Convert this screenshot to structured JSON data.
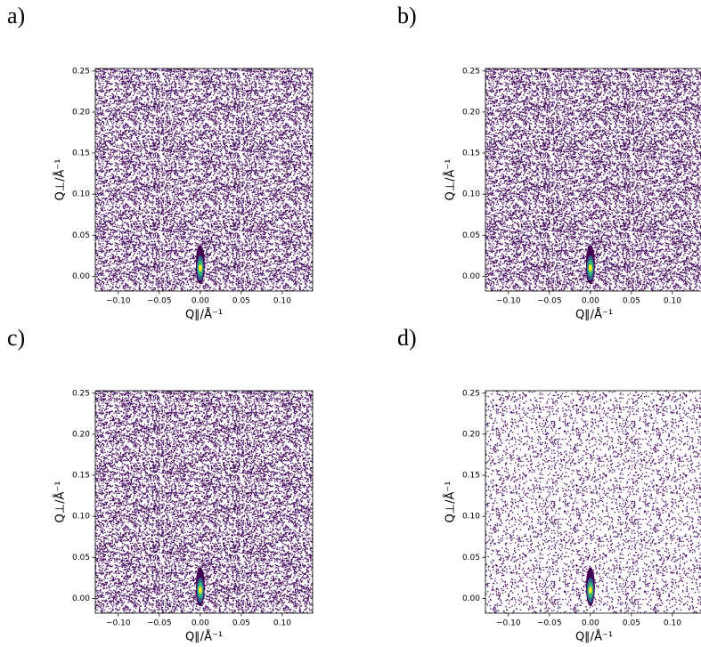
{
  "chart_data": [
    {
      "type": "heatmap",
      "panel": "a)",
      "xlabel": "Q∥/Å⁻¹",
      "ylabel": "Q⊥/Å⁻¹",
      "xlim": [
        -0.128,
        0.137
      ],
      "ylim": [
        -0.018,
        0.253
      ],
      "xticks": [
        {
          "value": -0.1,
          "label": "−0.10"
        },
        {
          "value": -0.05,
          "label": "−0.05"
        },
        {
          "value": 0,
          "label": "0.00"
        },
        {
          "value": 0.05,
          "label": "0.05"
        },
        {
          "value": 0.1,
          "label": "0.10"
        }
      ],
      "yticks": [
        {
          "value": 0,
          "label": "0.00"
        },
        {
          "value": 0.05,
          "label": "0.05"
        },
        {
          "value": 0.1,
          "label": "0.10"
        },
        {
          "value": 0.15,
          "label": "0.15"
        },
        {
          "value": 0.2,
          "label": "0.20"
        },
        {
          "value": 0.25,
          "label": "0.25"
        }
      ],
      "peak": {
        "x": 0,
        "y": 0.01
      },
      "colormap": [
        "#440154",
        "#31688e",
        "#35b779",
        "#fde725"
      ]
    },
    {
      "type": "heatmap",
      "panel": "b)",
      "xlabel": "Q∥/Å⁻¹",
      "ylabel": "Q⊥/Å⁻¹",
      "xlim": [
        -0.128,
        0.137
      ],
      "ylim": [
        -0.018,
        0.253
      ],
      "xticks": [
        {
          "value": -0.1,
          "label": "−0.10"
        },
        {
          "value": -0.05,
          "label": "−0.05"
        },
        {
          "value": 0,
          "label": "0.00"
        },
        {
          "value": 0.05,
          "label": "0.05"
        },
        {
          "value": 0.1,
          "label": "0.10"
        }
      ],
      "yticks": [
        {
          "value": 0,
          "label": "0.00"
        },
        {
          "value": 0.05,
          "label": "0.05"
        },
        {
          "value": 0.1,
          "label": "0.10"
        },
        {
          "value": 0.15,
          "label": "0.15"
        },
        {
          "value": 0.2,
          "label": "0.20"
        },
        {
          "value": 0.25,
          "label": "0.25"
        }
      ],
      "peak": {
        "x": 0,
        "y": 0.01
      },
      "colormap": [
        "#440154",
        "#31688e",
        "#35b779",
        "#fde725"
      ]
    },
    {
      "type": "heatmap",
      "panel": "c)",
      "xlabel": "Q∥/Å⁻¹",
      "ylabel": "Q⊥/Å⁻¹",
      "xlim": [
        -0.128,
        0.137
      ],
      "ylim": [
        -0.018,
        0.253
      ],
      "xticks": [
        {
          "value": -0.1,
          "label": "−0.10"
        },
        {
          "value": -0.05,
          "label": "−0.05"
        },
        {
          "value": 0,
          "label": "0.00"
        },
        {
          "value": 0.05,
          "label": "0.05"
        },
        {
          "value": 0.1,
          "label": "0.10"
        }
      ],
      "yticks": [
        {
          "value": 0,
          "label": "0.00"
        },
        {
          "value": 0.05,
          "label": "0.05"
        },
        {
          "value": 0.1,
          "label": "0.10"
        },
        {
          "value": 0.15,
          "label": "0.15"
        },
        {
          "value": 0.2,
          "label": "0.20"
        },
        {
          "value": 0.25,
          "label": "0.25"
        }
      ],
      "peak": {
        "x": 0,
        "y": 0.01
      },
      "colormap": [
        "#440154",
        "#31688e",
        "#35b779",
        "#fde725"
      ]
    },
    {
      "type": "heatmap",
      "panel": "d)",
      "xlabel": "Q∥/Å⁻¹",
      "ylabel": "Q⊥/Å⁻¹",
      "xlim": [
        -0.128,
        0.137
      ],
      "ylim": [
        -0.018,
        0.253
      ],
      "xticks": [
        {
          "value": -0.1,
          "label": "−0.10"
        },
        {
          "value": -0.05,
          "label": "−0.05"
        },
        {
          "value": 0,
          "label": "0.00"
        },
        {
          "value": 0.05,
          "label": "0.05"
        },
        {
          "value": 0.1,
          "label": "0.10"
        }
      ],
      "yticks": [
        {
          "value": 0,
          "label": "0.00"
        },
        {
          "value": 0.05,
          "label": "0.05"
        },
        {
          "value": 0.1,
          "label": "0.10"
        },
        {
          "value": 0.15,
          "label": "0.15"
        },
        {
          "value": 0.2,
          "label": "0.20"
        },
        {
          "value": 0.25,
          "label": "0.25"
        }
      ],
      "peak": {
        "x": 0,
        "y": 0.01
      },
      "colormap": [
        "#440154",
        "#31688e",
        "#35b779",
        "#fde725"
      ]
    }
  ]
}
